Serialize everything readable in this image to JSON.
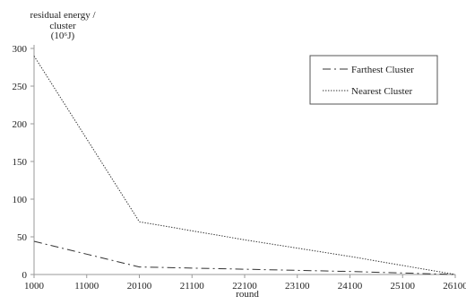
{
  "chart_data": {
    "type": "line",
    "ylabel_lines": [
      "residual energy /",
      "cluster",
      "(10⁶J)"
    ],
    "xlabel": "round",
    "categories": [
      "1000",
      "11000",
      "20100",
      "21100",
      "22100",
      "23100",
      "24100",
      "25100",
      "26100"
    ],
    "ylim": [
      0,
      300
    ],
    "yticks": [
      0,
      50,
      100,
      150,
      200,
      250,
      300
    ],
    "grid": false,
    "legend_position": "top-right",
    "series": [
      {
        "name": "Farthest Cluster",
        "style": "dash-dot",
        "color": "#333333",
        "values": [
          44,
          27,
          10,
          8.5,
          7,
          5.5,
          4,
          2,
          0
        ]
      },
      {
        "name": "Nearest Cluster",
        "style": "dotted",
        "color": "#333333",
        "values": [
          290,
          180,
          70,
          58,
          46,
          35,
          24,
          12,
          0
        ]
      }
    ]
  }
}
